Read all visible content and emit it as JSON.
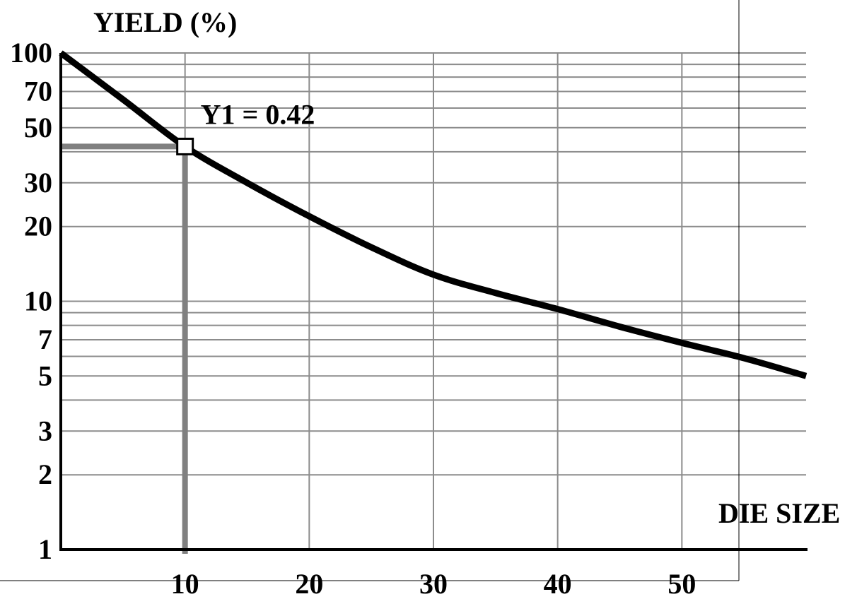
{
  "chart_data": {
    "type": "line",
    "title": "",
    "ylabel": "YIELD (%)",
    "xlabel": "DIE SIZE",
    "y_scale": "log",
    "ylim": [
      1,
      100
    ],
    "xlim": [
      0,
      60
    ],
    "grid": true,
    "y_ticks": [
      1,
      2,
      3,
      5,
      7,
      10,
      20,
      30,
      50,
      70,
      100
    ],
    "y_tick_labels": [
      "1",
      "2",
      "3",
      "5",
      "7",
      "10",
      "20",
      "30",
      "50",
      "70",
      "100"
    ],
    "y_minor_gridlines": [
      4,
      6,
      8,
      9,
      40,
      60,
      80,
      90
    ],
    "x_ticks": [
      10,
      20,
      30,
      40,
      50
    ],
    "x_tick_labels": [
      "10",
      "20",
      "30",
      "40",
      "50"
    ],
    "series": [
      {
        "x": [
          0,
          5,
          10,
          15,
          20,
          25,
          30,
          35,
          40,
          45,
          50,
          55,
          60
        ],
        "y": [
          100,
          65,
          42,
          30,
          22,
          16.5,
          12.8,
          10.8,
          9.3,
          7.9,
          6.8,
          5.9,
          5
        ]
      }
    ],
    "annotations": [
      {
        "text": "Y1 = 0.42",
        "x": 10,
        "y": 42
      }
    ],
    "colors": {
      "curve": "#000000",
      "grid": "#8c8c8c",
      "guide": "#808080",
      "axis": "#000000"
    }
  }
}
